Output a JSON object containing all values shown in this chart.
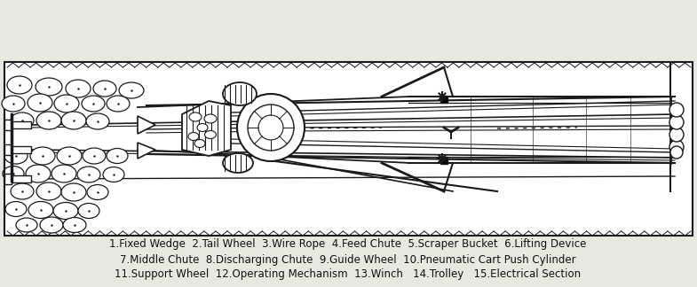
{
  "bg_color": "#e8e8e0",
  "diagram_bg": "#ffffff",
  "text_lines": [
    "1.Fixed Wedge  2.Tail Wheel  3.Wire Rope  4.Feed Chute  5.Scraper Bucket  6.Lifting Device",
    "7.Middle Chute  8.Discharging Chute  9.Guide Wheel  10.Pneumatic Cart Push Cylinder",
    "11.Support Wheel  12.Operating Mechanism  13.Winch   14.Trolley   15.Electrical Section"
  ],
  "text_fontsize": 8.5,
  "text_color": "#111111",
  "line_color": "#1a1a1a",
  "figure_width": 7.85,
  "figure_height": 3.24,
  "dpi": 100
}
